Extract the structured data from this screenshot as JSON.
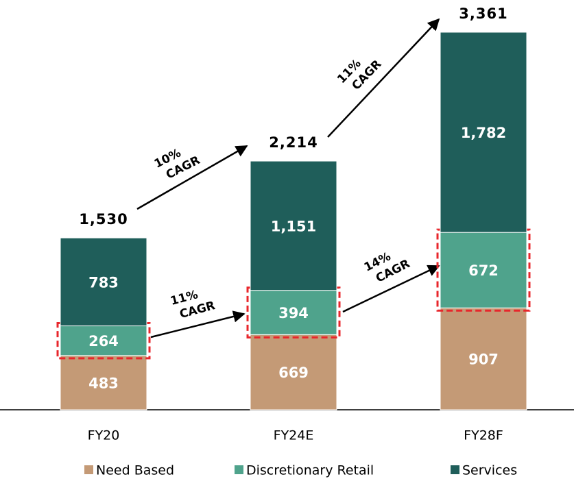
{
  "chart_data": {
    "type": "stacked-bar",
    "categories": [
      "FY20",
      "FY24E",
      "FY28F"
    ],
    "series": [
      {
        "name": "Need Based",
        "color": "#c49a76",
        "values": [
          483,
          669,
          907
        ]
      },
      {
        "name": "Discretionary Retail",
        "color": "#4fa38c",
        "values": [
          264,
          394,
          672
        ]
      },
      {
        "name": "Services",
        "color": "#1f5e5a",
        "values": [
          783,
          1151,
          1782
        ],
        "value_labels": [
          "783",
          "1,151",
          "1,782"
        ]
      }
    ],
    "totals": [
      1530,
      2214,
      3361
    ],
    "total_labels": [
      "1,530",
      "2,214",
      "3,361"
    ],
    "annotations": [
      {
        "lines": [
          "10%",
          "CAGR"
        ]
      },
      {
        "lines": [
          "11%",
          "CAGR"
        ]
      },
      {
        "lines": [
          "11%",
          "CAGR"
        ]
      },
      {
        "lines": [
          "14%",
          "CAGR"
        ]
      }
    ],
    "legend": "bottom"
  }
}
